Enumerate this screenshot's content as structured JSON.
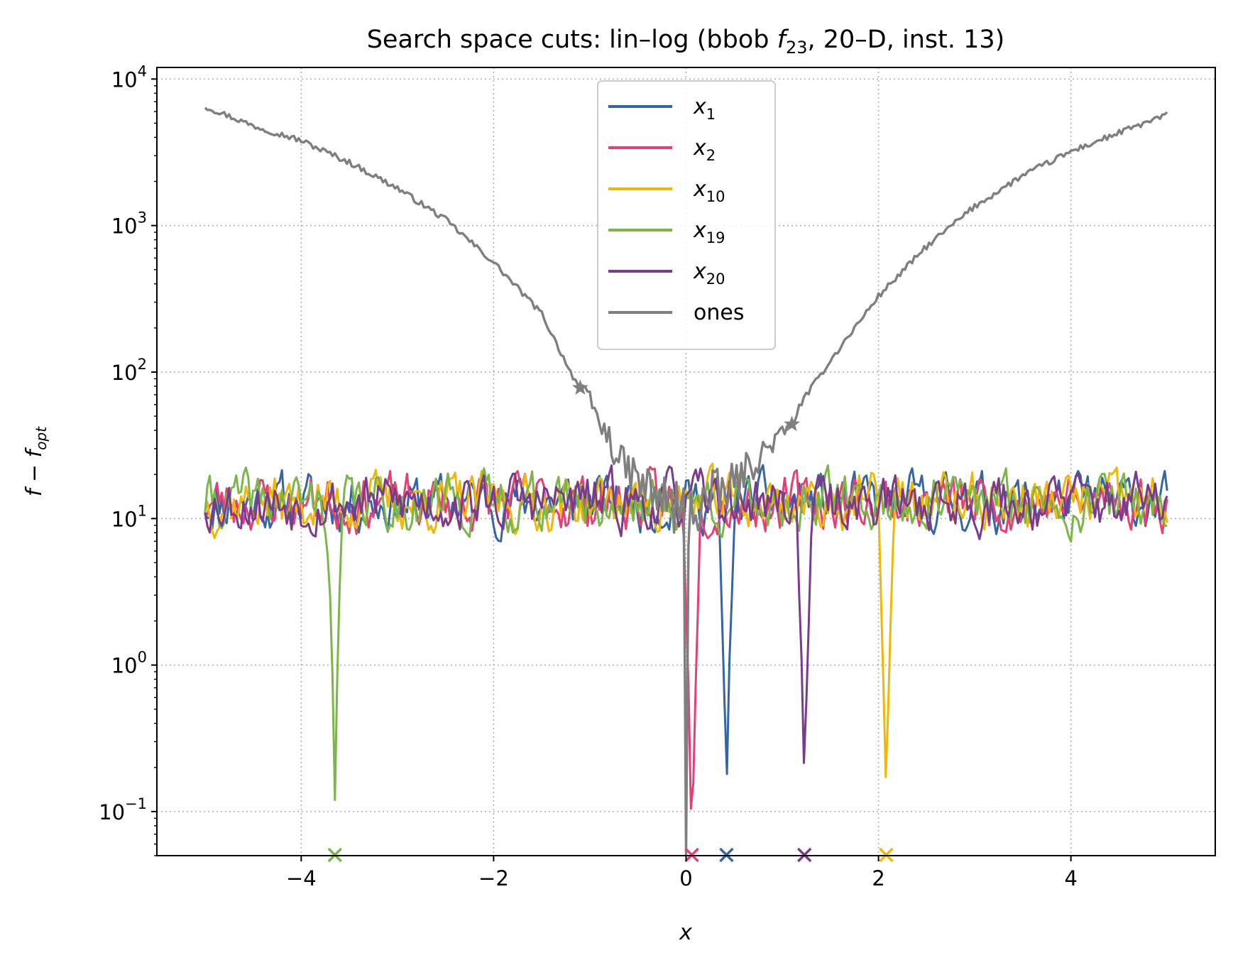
{
  "chart_data": {
    "type": "line",
    "title": "Search space cuts: lin–log (bbob f23, 20–D, inst. 13)",
    "title_parts": {
      "prefix": "Search space cuts: lin–log (bbob ",
      "f": "f",
      "sub": "23",
      "suffix": ", 20–D, inst. 13)"
    },
    "xlabel": "x",
    "ylabel": "f − f_opt",
    "ylabel_parts": {
      "main": "f − f",
      "sub": "opt"
    },
    "xscale": "linear",
    "yscale": "log",
    "xlim": [
      -5.5,
      5.5
    ],
    "ylim": [
      0.05,
      12000
    ],
    "x_ticks": [
      -4,
      -2,
      0,
      2,
      4
    ],
    "x_tick_labels": [
      "−4",
      "−2",
      "0",
      "2",
      "4"
    ],
    "y_ticks": [
      0.1,
      1,
      10,
      100,
      1000,
      10000
    ],
    "y_tick_labels": [
      {
        "base": "10",
        "exp": "−1"
      },
      {
        "base": "10",
        "exp": "0"
      },
      {
        "base": "10",
        "exp": "1"
      },
      {
        "base": "10",
        "exp": "2"
      },
      {
        "base": "10",
        "exp": "3"
      },
      {
        "base": "10",
        "exp": "4"
      }
    ],
    "grid": true,
    "legend_position": "upper-center",
    "series": [
      {
        "name": "x1",
        "label_main": "x",
        "label_sub": "1",
        "color": "#3465a4",
        "min_x": 0.42,
        "min_y": 0.09,
        "marker_x": 0.42,
        "marker": "x",
        "seed": 11
      },
      {
        "name": "x2",
        "label_main": "x",
        "label_sub": "2",
        "color": "#e83e73",
        "min_x": 0.06,
        "min_y": 0.03,
        "marker_x": 0.06,
        "marker": "x",
        "seed": 23
      },
      {
        "name": "x10",
        "label_main": "x",
        "label_sub": "10",
        "color": "#f2b705",
        "min_x": 2.08,
        "min_y": 0.09,
        "marker_x": 2.08,
        "marker": "x",
        "seed": 37
      },
      {
        "name": "x19",
        "label_main": "x",
        "label_sub": "19",
        "color": "#7ab648",
        "min_x": -3.65,
        "min_y": 0.12,
        "marker_x": -3.65,
        "marker": "x",
        "seed": 41
      },
      {
        "name": "x20",
        "label_main": "x",
        "label_sub": "20",
        "color": "#7b3b8c",
        "min_x": 1.23,
        "min_y": 0.12,
        "marker_x": 1.23,
        "marker": "x",
        "seed": 53
      }
    ],
    "ones_series": {
      "name": "ones",
      "label": "ones",
      "color": "#7f7f7f",
      "points": [
        [
          -5.0,
          6500
        ],
        [
          -4.5,
          4800
        ],
        [
          -4.0,
          3800
        ],
        [
          -3.5,
          2700
        ],
        [
          -3.0,
          1800
        ],
        [
          -2.5,
          1100
        ],
        [
          -2.0,
          560
        ],
        [
          -1.5,
          250
        ],
        [
          -1.2,
          100
        ],
        [
          -1.1,
          78
        ],
        [
          -1.0,
          65
        ],
        [
          -0.9,
          45
        ],
        [
          -0.8,
          35
        ],
        [
          -0.7,
          25
        ],
        [
          -0.5,
          18
        ],
        [
          -0.3,
          14
        ],
        [
          -0.1,
          12
        ],
        [
          0.0,
          10
        ],
        [
          0.1,
          12
        ],
        [
          0.3,
          14
        ],
        [
          0.5,
          17
        ],
        [
          0.7,
          24
        ],
        [
          0.9,
          33
        ],
        [
          1.1,
          44
        ],
        [
          1.2,
          62
        ],
        [
          1.5,
          120
        ],
        [
          2.0,
          330
        ],
        [
          2.5,
          720
        ],
        [
          3.0,
          1350
        ],
        [
          3.5,
          2200
        ],
        [
          4.0,
          3200
        ],
        [
          4.5,
          4300
        ],
        [
          5.0,
          5700
        ]
      ],
      "star_markers_x": [
        -1.1,
        1.1
      ],
      "star_markers_y": [
        78,
        44
      ],
      "dip_x": 0.0
    }
  }
}
